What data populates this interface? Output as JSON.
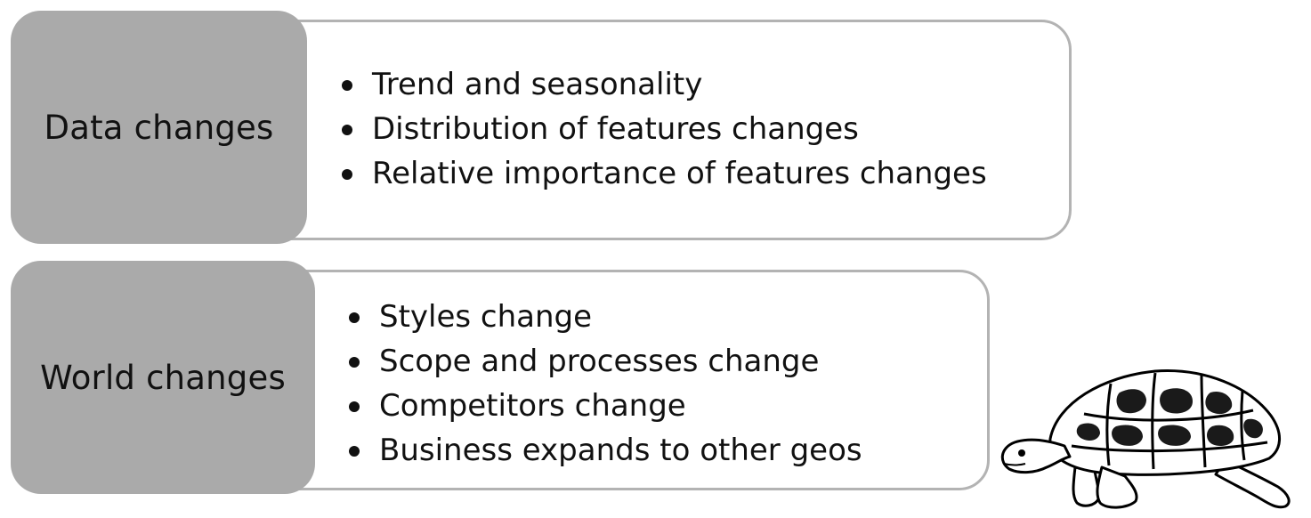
{
  "rows": [
    {
      "label": "Data changes",
      "items": [
        "Trend and seasonality",
        "Distribution of features changes",
        "Relative importance of features changes"
      ]
    },
    {
      "label": "World changes",
      "items": [
        "Styles change",
        "Scope and processes change",
        "Competitors change",
        "Business expands to other geos"
      ]
    }
  ],
  "colors": {
    "label_fill": "#aaaaaa",
    "box_border": "#b3b3b3",
    "text": "#111111"
  },
  "decoration": "turtle-illustration"
}
